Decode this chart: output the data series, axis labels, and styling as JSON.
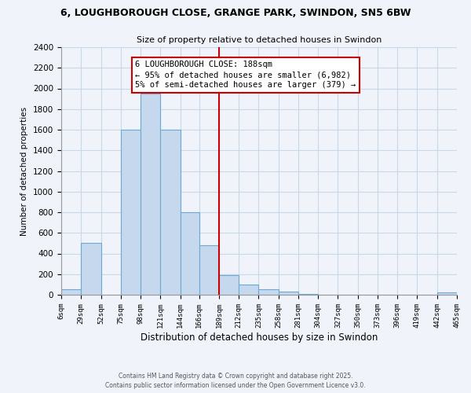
{
  "title": "6, LOUGHBOROUGH CLOSE, GRANGE PARK, SWINDON, SN5 6BW",
  "subtitle": "Size of property relative to detached houses in Swindon",
  "xlabel": "Distribution of detached houses by size in Swindon",
  "ylabel": "Number of detached properties",
  "bar_color": "#c5d8ed",
  "bar_edge_color": "#6aaad4",
  "bin_edges": [
    6,
    29,
    52,
    75,
    98,
    121,
    144,
    166,
    189,
    212,
    235,
    258,
    281,
    304,
    327,
    350,
    373,
    396,
    419,
    442,
    465
  ],
  "bar_heights": [
    50,
    500,
    0,
    1600,
    1950,
    1600,
    800,
    480,
    190,
    100,
    50,
    30,
    10,
    0,
    0,
    0,
    0,
    0,
    0,
    20
  ],
  "tick_labels": [
    "6sqm",
    "29sqm",
    "52sqm",
    "75sqm",
    "98sqm",
    "121sqm",
    "144sqm",
    "166sqm",
    "189sqm",
    "212sqm",
    "235sqm",
    "258sqm",
    "281sqm",
    "304sqm",
    "327sqm",
    "350sqm",
    "373sqm",
    "396sqm",
    "419sqm",
    "442sqm",
    "465sqm"
  ],
  "vline_x": 189,
  "vline_color": "#cc0000",
  "annotation_title": "6 LOUGHBOROUGH CLOSE: 188sqm",
  "annotation_line1": "← 95% of detached houses are smaller (6,982)",
  "annotation_line2": "5% of semi-detached houses are larger (379) →",
  "annotation_box_color": "#ffffff",
  "annotation_box_edge": "#cc0000",
  "ylim": [
    0,
    2400
  ],
  "yticks": [
    0,
    200,
    400,
    600,
    800,
    1000,
    1200,
    1400,
    1600,
    1800,
    2000,
    2200,
    2400
  ],
  "footer1": "Contains HM Land Registry data © Crown copyright and database right 2025.",
  "footer2": "Contains public sector information licensed under the Open Government Licence v3.0.",
  "grid_color": "#c8d8e8",
  "background_color": "#f0f4fa"
}
